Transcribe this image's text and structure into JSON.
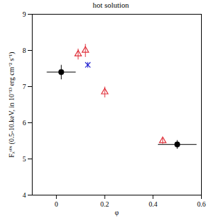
{
  "chart_data": {
    "type": "scatter",
    "title": "hot solution",
    "x_label": "φ",
    "y_label": "Fₓᵒᵇˢ (0.5-10.keV, in 10⁻¹³ erg cm⁻² s⁻¹)",
    "xlim": [
      -0.1,
      0.6
    ],
    "xticks": [
      0,
      0.2,
      0.4,
      0.6
    ],
    "ylim": [
      4,
      9
    ],
    "yticks": [
      4,
      5,
      6,
      7,
      8,
      9
    ],
    "series": [
      {
        "color": "#000000",
        "marker": "circle",
        "x": [
          0.02,
          0.5
        ],
        "y": [
          7.4,
          5.4
        ],
        "xerr": [
          0.06,
          0.08
        ],
        "yerr": [
          0.2,
          0.12
        ]
      },
      {
        "color": "#e0303a",
        "marker": "open triangle",
        "x": [
          0.09,
          0.12,
          0.2,
          0.44
        ],
        "y": [
          7.9,
          8.0,
          6.85,
          5.5
        ],
        "xerr": [
          0,
          0,
          0,
          0
        ],
        "yerr": [
          0.15,
          0.18,
          0.15,
          0.08
        ]
      },
      {
        "color": "#2020d0",
        "marker": "x",
        "x": [
          0.13
        ],
        "y": [
          7.6
        ],
        "xerr": [
          0
        ],
        "yerr": [
          0.08
        ]
      }
    ]
  }
}
